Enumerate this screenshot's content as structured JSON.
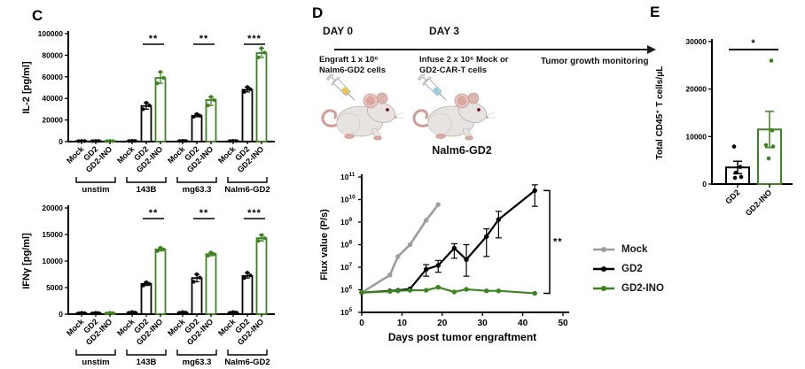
{
  "panels": {
    "c_label": "C",
    "d_label": "D",
    "e_label": "E"
  },
  "colors": {
    "green": "#3d8420",
    "gray": "#9d9d9d",
    "black": "#000000",
    "bar_fill": "#ffffff"
  },
  "schematic": {
    "day0": "DAY 0",
    "day3": "DAY 3",
    "engraft_lines": [
      "Engraft 1 x 10⁶",
      "Nalm6-GD2 cells"
    ],
    "infuse_lines": [
      "Infuse 2 x 10⁶ Mock or",
      "GD2-CAR-T cells"
    ],
    "monitoring": "Tumor growth monitoring",
    "icons": [
      "syringe-icon",
      "mouse-icon",
      "timeline-arrow-icon"
    ],
    "engraft_syringe_color": "#e9c24a",
    "infuse_syringe_color": "#8fd0e6"
  },
  "legend": {
    "entries": [
      {
        "label": "Mock",
        "color": "#9d9d9d"
      },
      {
        "label": "GD2",
        "color": "#000000"
      },
      {
        "label": "GD2-INO",
        "color": "#3d8420"
      }
    ]
  },
  "chart_data": [
    {
      "id": "il2",
      "type": "grouped_bar_scatter",
      "ylabel": "IL-2 [pg/ml]",
      "ylim": [
        0,
        100000
      ],
      "yticks": [
        0,
        20000,
        40000,
        60000,
        80000,
        100000
      ],
      "bar_labels": [
        "Mock",
        "GD2",
        "GD2-INO"
      ],
      "bar_colors": [
        "#000000",
        "#000000",
        "#3d8420"
      ],
      "groups": [
        {
          "name": "unstim",
          "values": [
            500,
            500,
            500
          ],
          "sig": null,
          "points": [
            [
              400,
              500,
              600
            ],
            [
              400,
              500,
              600
            ],
            [
              400,
              500,
              600
            ]
          ]
        },
        {
          "name": "143B",
          "values": [
            600,
            33000,
            59000
          ],
          "sig": "**",
          "points": [
            [
              500,
              600,
              700
            ],
            [
              30000,
              33500,
              36000
            ],
            [
              54000,
              59000,
              64500
            ]
          ]
        },
        {
          "name": "mg63.3",
          "values": [
            600,
            24000,
            38500
          ],
          "sig": "**",
          "points": [
            [
              500,
              600,
              700
            ],
            [
              23000,
              24000,
              25500
            ],
            [
              33500,
              38500,
              41500
            ]
          ]
        },
        {
          "name": "Nalm6-GD2",
          "values": [
            600,
            48000,
            82000
          ],
          "sig": "***",
          "points": [
            [
              500,
              600,
              700
            ],
            [
              46000,
              48500,
              50500
            ],
            [
              78000,
              82500,
              86500
            ]
          ]
        }
      ]
    },
    {
      "id": "ifng",
      "type": "grouped_bar_scatter",
      "ylabel": "IFNγ [pg/ml]",
      "ylim": [
        0,
        20000
      ],
      "yticks": [
        0,
        5000,
        10000,
        15000,
        20000
      ],
      "bar_labels": [
        "Mock",
        "GD2",
        "GD2-INO"
      ],
      "bar_colors": [
        "#000000",
        "#000000",
        "#3d8420"
      ],
      "groups": [
        {
          "name": "unstim",
          "values": [
            200,
            200,
            200
          ],
          "sig": null,
          "points": [
            [
              150,
              200,
              250
            ],
            [
              150,
              200,
              250
            ],
            [
              150,
              200,
              250
            ]
          ]
        },
        {
          "name": "143B",
          "values": [
            300,
            5700,
            12200
          ],
          "sig": "**",
          "points": [
            [
              250,
              300,
              400
            ],
            [
              5400,
              5700,
              6000
            ],
            [
              11900,
              12200,
              12500
            ]
          ]
        },
        {
          "name": "mg63.3",
          "values": [
            300,
            6800,
            11300
          ],
          "sig": "**",
          "points": [
            [
              250,
              300,
              400
            ],
            [
              6100,
              6900,
              7500
            ],
            [
              11000,
              11300,
              11600
            ]
          ]
        },
        {
          "name": "Nalm6-GD2",
          "values": [
            300,
            7200,
            14300
          ],
          "sig": "***",
          "points": [
            [
              250,
              300,
              400
            ],
            [
              6800,
              7300,
              7800
            ],
            [
              13800,
              14300,
              14900
            ]
          ]
        }
      ]
    },
    {
      "id": "flux",
      "type": "line_log",
      "title": "Nalm6-GD2",
      "ylabel": "Flux value (P/s)",
      "xlabel": "Days post tumor engraftment",
      "ylog_exponents": [
        5,
        11
      ],
      "xlim": [
        0,
        50
      ],
      "xticks": [
        0,
        10,
        20,
        30,
        40,
        50
      ],
      "sig": "**",
      "series": [
        {
          "name": "Mock",
          "color": "#9d9d9d",
          "x": [
            0,
            7,
            9,
            12,
            16,
            19
          ],
          "y": [
            750000.0,
            4500000.0,
            30000000.0,
            100000000.0,
            1200000000.0,
            6000000000.0
          ],
          "err_lo": null,
          "err_hi": null
        },
        {
          "name": "GD2",
          "color": "#000000",
          "x": [
            0,
            7,
            9,
            12,
            16,
            19,
            23,
            26,
            31,
            34,
            43
          ],
          "y": [
            750000.0,
            900000.0,
            950000.0,
            1100000.0,
            8000000.0,
            12000000.0,
            70000000.0,
            22000000.0,
            230000000.0,
            1300000000.0,
            25000000000.0
          ],
          "err_lo": [
            null,
            null,
            null,
            null,
            4000000.0,
            6000000.0,
            25000000.0,
            4000000.0,
            30000000.0,
            200000000.0,
            5000000000.0
          ],
          "err_hi": [
            null,
            null,
            null,
            null,
            13000000.0,
            20000000.0,
            110000000.0,
            100000000.0,
            500000000.0,
            3000000000.0,
            45000000000.0
          ]
        },
        {
          "name": "GD2-INO",
          "color": "#3d8420",
          "x": [
            0,
            7,
            9,
            12,
            16,
            19,
            23,
            26,
            31,
            34,
            43
          ],
          "y": [
            750000.0,
            850000.0,
            900000.0,
            950000.0,
            950000.0,
            1300000.0,
            800000.0,
            1050000.0,
            900000.0,
            900000.0,
            700000.0
          ],
          "err_lo": null,
          "err_hi": null
        }
      ]
    },
    {
      "id": "cd45",
      "type": "bar_scatter",
      "ylabel": "Total CD45⁺ T cells/μL",
      "ylim": [
        0,
        30000
      ],
      "yticks": [
        0,
        10000,
        20000,
        30000
      ],
      "sig": "*",
      "bars": [
        {
          "label": "GD2",
          "color": "#000000",
          "mean": 3500,
          "err": 1300,
          "points": [
            7900,
            3600,
            2400,
            1500,
            1300
          ]
        },
        {
          "label": "GD2-INO",
          "color": "#3d8420",
          "mean": 11500,
          "err": 3800,
          "points": [
            26000,
            11300,
            8200,
            7900,
            5400
          ]
        }
      ]
    }
  ]
}
